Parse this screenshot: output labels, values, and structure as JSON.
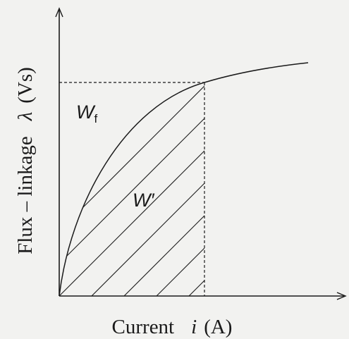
{
  "diagram": {
    "y_axis_label": {
      "prefix": "Flux – linkage",
      "symbol": "λ",
      "unit": "(Vs)"
    },
    "x_axis_label": {
      "prefix": "Current",
      "symbol": "i",
      "unit": "(A)"
    },
    "region_labels": {
      "field_energy": {
        "base": "W",
        "subscript": "f"
      },
      "coenergy": {
        "text": "W′"
      }
    },
    "colors": {
      "line": "#1a1a1a",
      "background": "#f2f2f0"
    }
  }
}
